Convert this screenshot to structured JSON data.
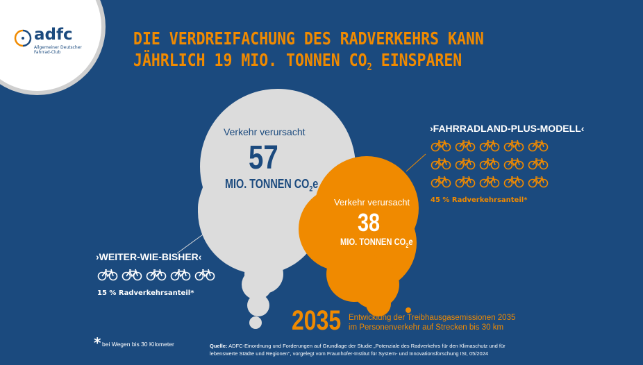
{
  "logo": {
    "name": "adfc",
    "subtitle_line1": "Allgemeiner Deutscher",
    "subtitle_line2": "Fahrrad-Club"
  },
  "title": {
    "line1": "DIE VERDREIFACHUNG DES RADVERKEHRS KANN",
    "line2_pre": "JÄHRLICH 19 MIO. TONNEN CO",
    "line2_sub": "2",
    "line2_post": " EINSPAREN"
  },
  "scenario_current": {
    "label": "›WEITER-WIE-BISHER‹",
    "cause": "Verkehr verursacht",
    "value": "57",
    "unit_pre": "MIO. TONNEN CO",
    "unit_sub": "2",
    "unit_post": "e",
    "bike_count": 5,
    "share": "15 % Radverkehrsanteil*"
  },
  "scenario_plus": {
    "label": "›FAHRRADLAND-PLUS-MODELL‹",
    "cause": "Verkehr verursacht",
    "value": "38",
    "unit_pre": "MIO. TONNEN CO",
    "unit_sub": "2",
    "unit_post": "e",
    "bike_count": 15,
    "share": "45 % Radverkehrsanteil*"
  },
  "year": {
    "value": "2035",
    "desc_line1": "Entwicklung der Treibhausgasemissionen 2035",
    "desc_line2": "im Personenverkehr auf Strecken bis 30 km"
  },
  "footnote": {
    "star": "*",
    "text": "bei Wegen bis 30 Kilometer"
  },
  "source": {
    "label": "Quelle:",
    "line1": " ADFC-Einordnung und Forderungen auf Grundlage der Studie „Potenziale des Radverkehrs für den Klimaschutz und für",
    "line2": "lebenswerte Städte und Regionen“, vorgelegt vom Fraunhofer-Institut für System- und Innovationsforschung ISI, 05/2024"
  },
  "colors": {
    "background": "#1b4a7e",
    "accent": "#f08a00",
    "cloud_gray": "#dcdcdc",
    "text_dark": "#1b4a7e"
  }
}
